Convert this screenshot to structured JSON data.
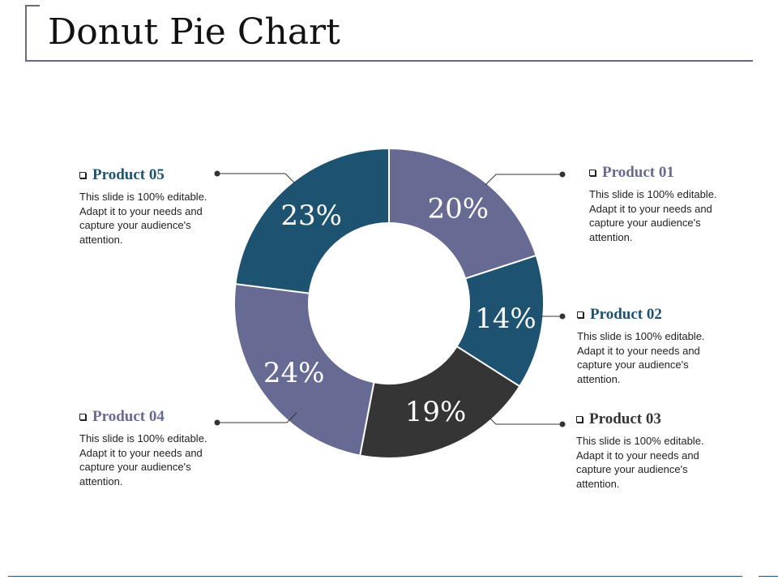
{
  "title": "Donut Pie Chart",
  "chart_data": {
    "type": "pie",
    "variant": "donut",
    "title": "",
    "categories": [
      "Product 01",
      "Product 02",
      "Product 03",
      "Product 04",
      "Product 05"
    ],
    "values": [
      20,
      14,
      19,
      24,
      23
    ],
    "labels": [
      "20%",
      "14%",
      "19%",
      "24%",
      "23%"
    ],
    "colors": [
      "#676a93",
      "#1d5371",
      "#353535",
      "#676a93",
      "#1d5371"
    ],
    "start_angle_deg": 0,
    "direction": "clockwise"
  },
  "callouts": [
    {
      "title": "Product 05",
      "title_color": "#1d5371",
      "body": "This slide is 100% editable. Adapt it to your needs and capture your audience's attention."
    },
    {
      "title": "Product 01",
      "title_color": "#676a93",
      "body": "This slide is 100% editable. Adapt it to your needs and capture your audience's attention."
    },
    {
      "title": "Product 02",
      "title_color": "#1d5371",
      "body": "This slide is 100% editable. Adapt it to your needs and capture your audience's attention."
    },
    {
      "title": "Product 04",
      "title_color": "#676a93",
      "body": "This slide is 100% editable. Adapt it to your needs and capture your audience's attention."
    },
    {
      "title": "Product 03",
      "title_color": "#353535",
      "body": "This slide is 100% editable. Adapt it to your needs and capture your audience's attention."
    }
  ],
  "colors": {
    "line": "#333333",
    "footer": "#1f5670"
  }
}
